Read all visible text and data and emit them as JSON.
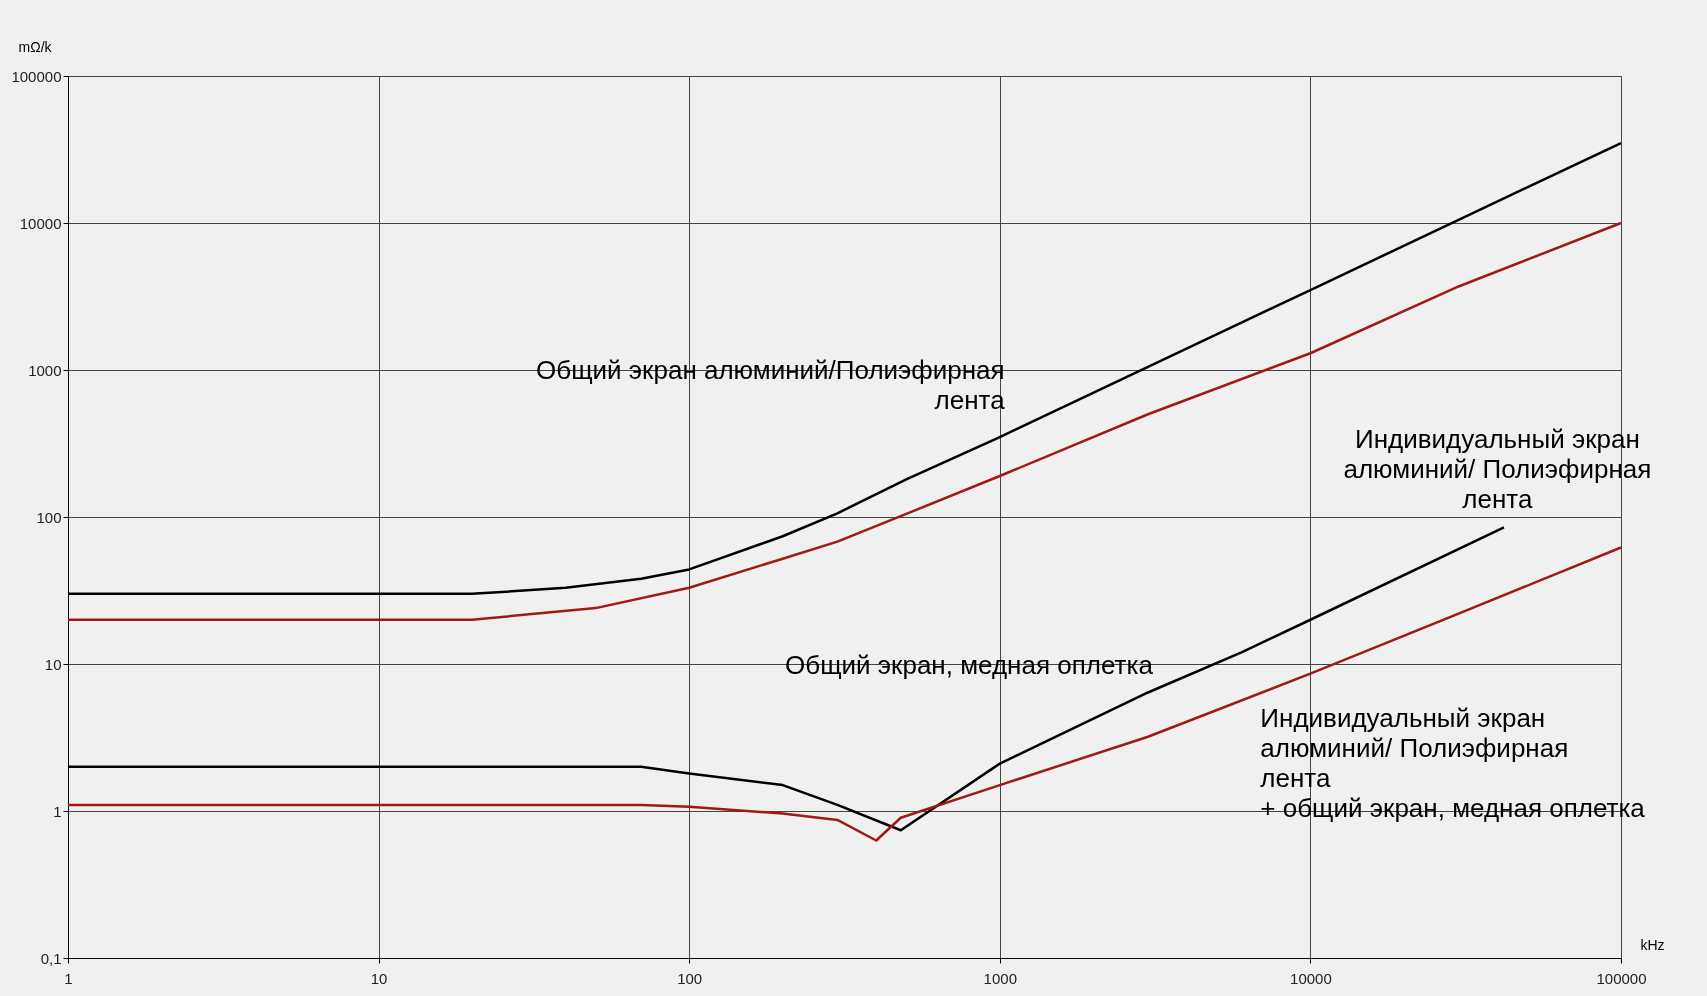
{
  "chart_data": {
    "type": "line",
    "xlabel": "kHz",
    "ylabel": "mΩ/k",
    "log": "xy",
    "grid": true,
    "legend": false,
    "line_style": "solid",
    "marker": "none",
    "xlim": [
      1,
      100000
    ],
    "xticks": [
      1,
      10,
      100,
      1000,
      10000,
      100000
    ],
    "ylim": [
      0.1,
      100000
    ],
    "yticks": [
      {
        "value": 0.1,
        "label": "0,1"
      },
      1,
      10,
      100,
      1000,
      10000,
      100000
    ],
    "series": [
      {
        "color": "#000000",
        "x": [
          1,
          20,
          40,
          70,
          100,
          200,
          300,
          500,
          1000,
          3000,
          10000,
          30000,
          100000
        ],
        "values": [
          30,
          30,
          33,
          38,
          44,
          74,
          106,
          180,
          350,
          1050,
          3500,
          10500,
          35000
        ]
      },
      {
        "color": "#a01818",
        "x": [
          1,
          20,
          50,
          100,
          200,
          300,
          500,
          1000,
          3000,
          10000,
          30000,
          100000
        ],
        "values": [
          20,
          20,
          24,
          33,
          52,
          68,
          105,
          190,
          500,
          1300,
          3700,
          10000
        ]
      },
      {
        "color": "#000000",
        "x": [
          1,
          70,
          100,
          200,
          300,
          480,
          1000,
          3000,
          6000,
          10000,
          42000
        ],
        "values": [
          2.0,
          2.0,
          1.8,
          1.5,
          1.1,
          0.74,
          2.1,
          6.4,
          12,
          20,
          85
        ]
      },
      {
        "color": "#a01818",
        "x": [
          1,
          70,
          100,
          200,
          300,
          400,
          480,
          1000,
          3000,
          10000,
          30000,
          100000
        ],
        "values": [
          1.1,
          1.1,
          1.07,
          0.96,
          0.87,
          0.63,
          0.9,
          1.5,
          3.2,
          8.6,
          22,
          62
        ]
      }
    ],
    "annotations": [
      {
        "text": "Общий экран алюминий/Полиэфирная\nлента",
        "x": 1100,
        "y": 400
      },
      {
        "text": "Индивидуальный экран\nалюминий/ Полиэфирная\nлента",
        "x": 40000,
        "y": 85
      },
      {
        "text": "Общий экран, медная оплетка",
        "x": 3300,
        "y": 7
      },
      {
        "text": "Индивидуальный экран\nалюминий/ Полиэфирная\nлента\n+ общий экран, медная оплетка",
        "x": 6600,
        "y": 5.9
      }
    ]
  }
}
